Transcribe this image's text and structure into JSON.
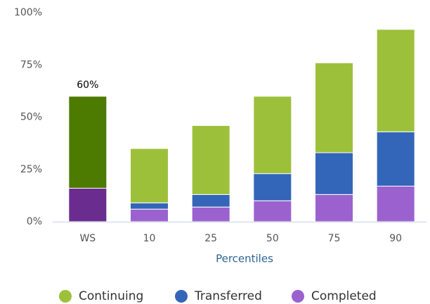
{
  "chart_data": {
    "type": "stacked_bar",
    "categories": [
      "WS",
      "10",
      "25",
      "50",
      "75",
      "90"
    ],
    "x_axis_label": "Percentiles",
    "series": [
      {
        "name": "Continuing",
        "color": "#9dc03b",
        "colors": [
          "#4d7a00",
          "#9dc03b",
          "#9dc03b",
          "#9dc03b",
          "#9dc03b",
          "#9dc03b"
        ],
        "values": [
          44,
          26,
          33,
          37,
          43,
          49
        ]
      },
      {
        "name": "Transferred",
        "color": "#3366b8",
        "colors": [
          "#3366b8",
          "#3366b8",
          "#3366b8",
          "#3366b8",
          "#3366b8",
          "#3366b8"
        ],
        "values": [
          0,
          3,
          6,
          13,
          20,
          26
        ]
      },
      {
        "name": "Completed",
        "color": "#9b62cf",
        "colors": [
          "#6b2c8f",
          "#9b62cf",
          "#9b62cf",
          "#9b62cf",
          "#9b62cf",
          "#9b62cf"
        ],
        "values": [
          16,
          6,
          7,
          10,
          13,
          17
        ]
      }
    ],
    "annotation": {
      "category": "WS",
      "value": 60,
      "label": "60%"
    },
    "ylim": [
      0,
      100
    ],
    "yticks": [
      {
        "value": 0,
        "label": "0%"
      },
      {
        "value": 25,
        "label": "25%"
      },
      {
        "value": 50,
        "label": "50%"
      },
      {
        "value": 75,
        "label": "75%"
      },
      {
        "value": 100,
        "label": "100%"
      }
    ],
    "grid": false,
    "legend": "bottom"
  }
}
